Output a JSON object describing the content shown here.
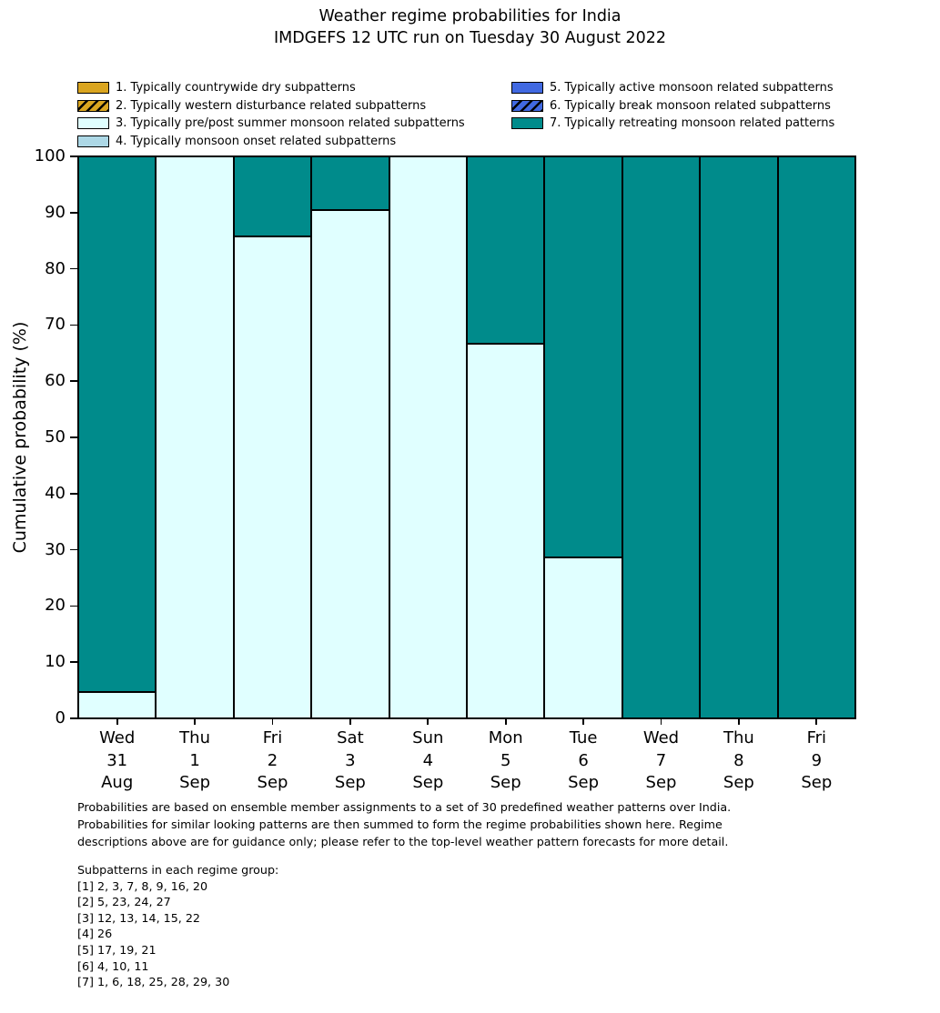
{
  "title": {
    "line1": "Weather regime probabilities for India",
    "line2": "IMDGEFS 12 UTC run on Tuesday 30 August 2022"
  },
  "legend": {
    "items": [
      {
        "label": "1. Typically countrywide dry subpatterns",
        "color": "#daa520",
        "hatch": false
      },
      {
        "label": "2. Typically western disturbance related subpatterns",
        "color": "#daa520",
        "hatch": true
      },
      {
        "label": "3. Typically pre/post summer monsoon related subpatterns",
        "color": "#e0ffff",
        "hatch": false
      },
      {
        "label": "4. Typically monsoon onset related subpatterns",
        "color": "#add8e6",
        "hatch": false
      },
      {
        "label": "5. Typically active monsoon related subpatterns",
        "color": "#4169e1",
        "hatch": false
      },
      {
        "label": "6. Typically break monsoon related subpatterns",
        "color": "#4169e1",
        "hatch": true
      },
      {
        "label": "7. Typically retreating monsoon related patterns",
        "color": "#008b8b",
        "hatch": false
      }
    ]
  },
  "chart_data": {
    "type": "bar",
    "stacked": true,
    "title": "Weather regime probabilities for India — IMDGEFS 12 UTC run on Tuesday 30 August 2022",
    "xlabel": "",
    "ylabel": "Cumulative probability (%)",
    "ylim": [
      0,
      100
    ],
    "yticks": [
      0,
      10,
      20,
      30,
      40,
      50,
      60,
      70,
      80,
      90,
      100
    ],
    "grid": false,
    "legend_position": "above-plot, two columns",
    "categories": [
      [
        "Wed",
        "31",
        "Aug"
      ],
      [
        "Thu",
        "1",
        "Sep"
      ],
      [
        "Fri",
        "2",
        "Sep"
      ],
      [
        "Sat",
        "3",
        "Sep"
      ],
      [
        "Sun",
        "4",
        "Sep"
      ],
      [
        "Mon",
        "5",
        "Sep"
      ],
      [
        "Tue",
        "6",
        "Sep"
      ],
      [
        "Wed",
        "7",
        "Sep"
      ],
      [
        "Thu",
        "8",
        "Sep"
      ],
      [
        "Fri",
        "9",
        "Sep"
      ]
    ],
    "series": [
      {
        "name": "3. Typically pre/post summer monsoon related subpatterns",
        "color": "#e0ffff",
        "values": [
          4.76,
          100,
          85.71,
          90.48,
          100,
          66.67,
          28.57,
          0,
          0,
          0
        ]
      },
      {
        "name": "7. Typically retreating monsoon related patterns",
        "color": "#008b8b",
        "values": [
          95.24,
          0,
          14.29,
          9.52,
          0,
          33.33,
          71.43,
          100,
          100,
          100
        ]
      }
    ]
  },
  "footer": {
    "intro_lines": [
      "Probabilities are based on ensemble member assignments to a set of 30 predefined weather patterns over India.",
      "Probabilities for similar looking patterns are then summed to form the regime probabilities shown here. Regime",
      "descriptions above are for guidance only; please refer to the top-level weather pattern forecasts for more detail."
    ],
    "subpatterns_header": "Subpatterns in each regime group:",
    "subpatterns": [
      "[1] 2, 3, 7, 8, 9, 16, 20",
      "[2] 5, 23, 24, 27",
      "[3] 12, 13, 14, 15, 22",
      "[4] 26",
      "[5] 17, 19, 21",
      "[6] 4, 10, 11",
      "[7] 1, 6, 18, 25, 28, 29, 30"
    ]
  }
}
